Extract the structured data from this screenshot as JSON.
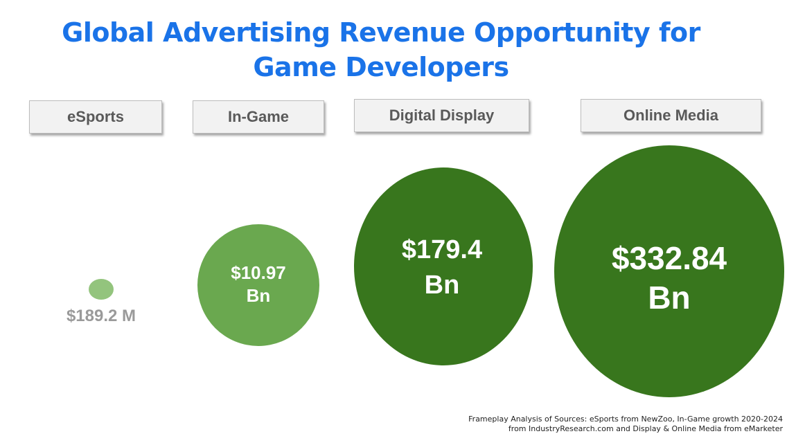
{
  "title_lines": [
    "Global Advertising Revenue Opportunity for",
    "Game Developers"
  ],
  "chart_data": {
    "type": "bubble",
    "unit": "USD",
    "categories": [
      "eSports",
      "In-Game",
      "Digital Display",
      "Online Media"
    ],
    "values_usd_billions": [
      0.1892,
      10.97,
      179.4,
      332.84
    ],
    "labels": [
      [
        "$189.2 M"
      ],
      [
        "$10.97",
        "Bn"
      ],
      [
        "$179.4",
        "Bn"
      ],
      [
        "$332.84",
        "Bn"
      ]
    ],
    "colors": [
      "#93c47d",
      "#6aa84f",
      "#38761d",
      "#38761d"
    ]
  },
  "footnote_lines": [
    "Frameplay Analysis of Sources: eSports from NewZoo, In-Game growth 2020-2024",
    "from IndustryResearch.com and Display & Online Media from eMarketer"
  ]
}
